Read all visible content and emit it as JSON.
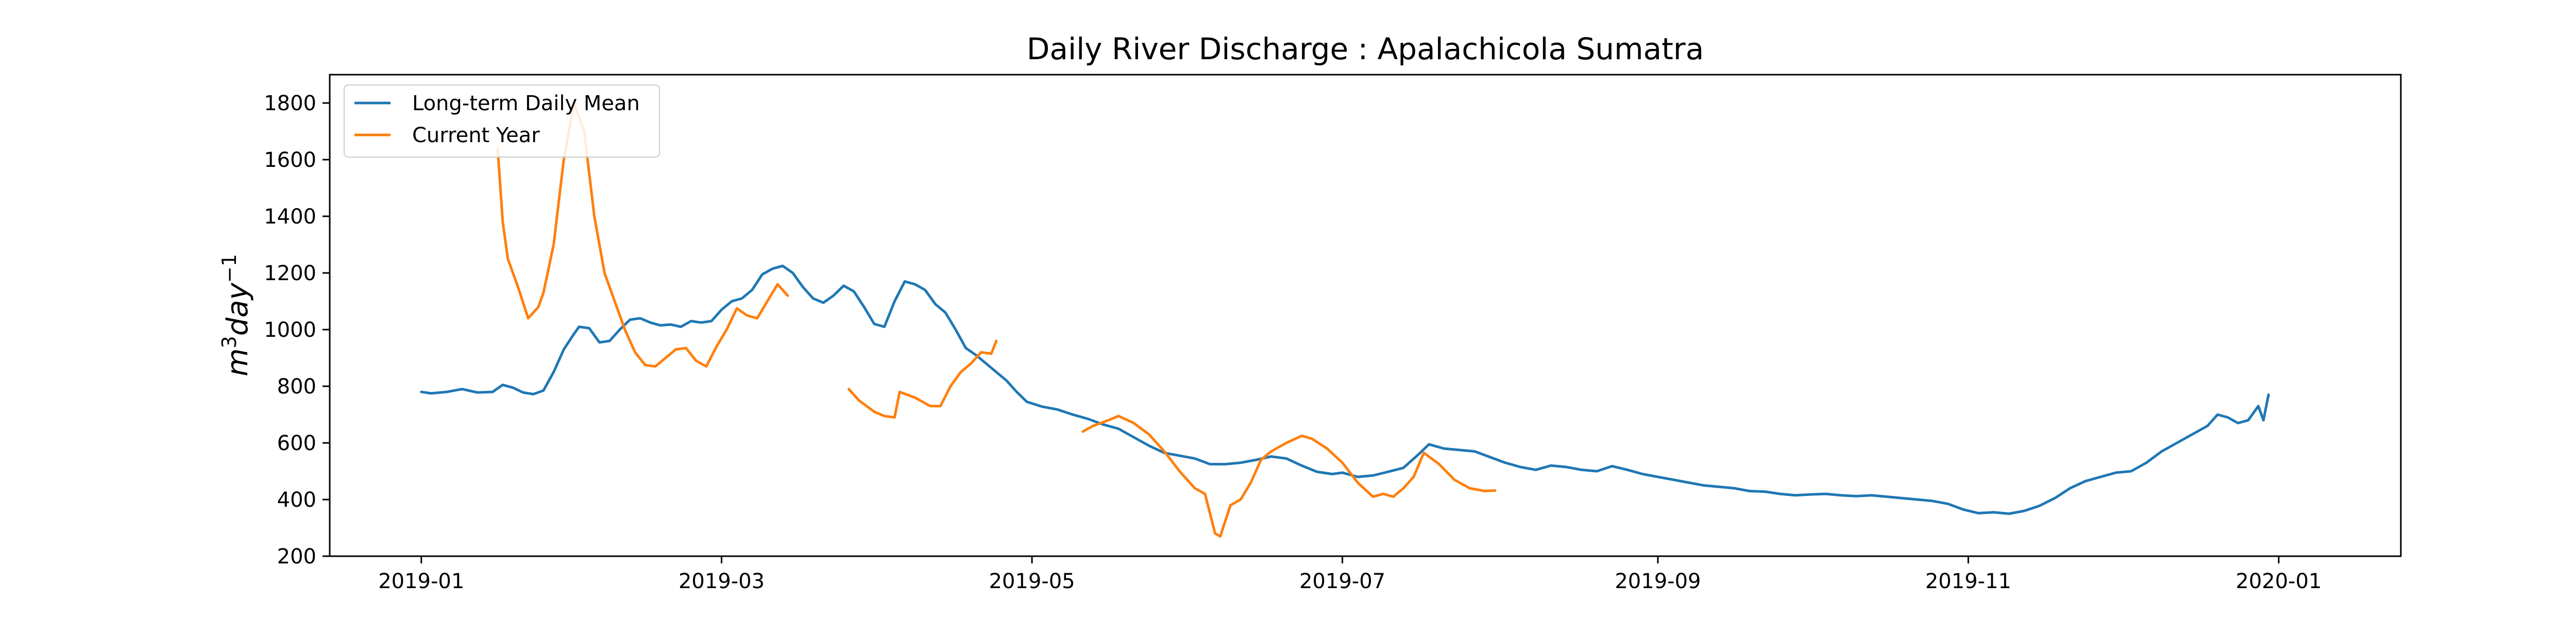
{
  "chart_data": {
    "type": "line",
    "title": "Daily River Discharge : Apalachicola Sumatra",
    "ylabel": "m^3 day^-1",
    "ylim": [
      200,
      1900
    ],
    "xlim": [
      "2018-12-14",
      "2020-01-25"
    ],
    "yticks": [
      200,
      400,
      600,
      800,
      1000,
      1200,
      1400,
      1600,
      1800
    ],
    "xticks": [
      "2019-01",
      "2019-03",
      "2019-05",
      "2019-07",
      "2019-09",
      "2019-11",
      "2020-01"
    ],
    "legend_position": "top-left",
    "grid": false,
    "series": [
      {
        "name": "Long-term Daily Mean",
        "color": "#1f77b4",
        "segments": [
          [
            [
              "2019-01-01",
              780
            ],
            [
              "2019-01-03",
              775
            ],
            [
              "2019-01-06",
              780
            ],
            [
              "2019-01-09",
              790
            ],
            [
              "2019-01-12",
              778
            ],
            [
              "2019-01-15",
              780
            ],
            [
              "2019-01-17",
              805
            ],
            [
              "2019-01-19",
              795
            ],
            [
              "2019-01-21",
              778
            ],
            [
              "2019-01-23",
              772
            ],
            [
              "2019-01-25",
              785
            ],
            [
              "2019-01-27",
              850
            ],
            [
              "2019-01-29",
              930
            ],
            [
              "2019-01-31",
              985
            ],
            [
              "2019-02-01",
              1010
            ],
            [
              "2019-02-03",
              1005
            ],
            [
              "2019-02-05",
              955
            ],
            [
              "2019-02-07",
              960
            ],
            [
              "2019-02-09",
              1000
            ],
            [
              "2019-02-11",
              1035
            ],
            [
              "2019-02-13",
              1040
            ],
            [
              "2019-02-15",
              1025
            ],
            [
              "2019-02-17",
              1015
            ],
            [
              "2019-02-19",
              1018
            ],
            [
              "2019-02-21",
              1010
            ],
            [
              "2019-02-23",
              1030
            ],
            [
              "2019-02-25",
              1025
            ],
            [
              "2019-02-27",
              1030
            ],
            [
              "2019-03-01",
              1070
            ],
            [
              "2019-03-03",
              1100
            ],
            [
              "2019-03-05",
              1110
            ],
            [
              "2019-03-07",
              1140
            ],
            [
              "2019-03-09",
              1195
            ],
            [
              "2019-03-11",
              1215
            ],
            [
              "2019-03-13",
              1225
            ],
            [
              "2019-03-15",
              1200
            ],
            [
              "2019-03-17",
              1150
            ],
            [
              "2019-03-19",
              1110
            ],
            [
              "2019-03-21",
              1095
            ],
            [
              "2019-03-23",
              1120
            ],
            [
              "2019-03-25",
              1155
            ],
            [
              "2019-03-27",
              1135
            ],
            [
              "2019-03-29",
              1080
            ],
            [
              "2019-03-31",
              1020
            ],
            [
              "2019-04-02",
              1010
            ],
            [
              "2019-04-04",
              1100
            ],
            [
              "2019-04-06",
              1170
            ],
            [
              "2019-04-08",
              1160
            ],
            [
              "2019-04-10",
              1140
            ],
            [
              "2019-04-12",
              1090
            ],
            [
              "2019-04-14",
              1060
            ],
            [
              "2019-04-16",
              1000
            ],
            [
              "2019-04-18",
              935
            ],
            [
              "2019-04-20",
              910
            ],
            [
              "2019-04-22",
              880
            ],
            [
              "2019-04-24",
              850
            ],
            [
              "2019-04-26",
              820
            ],
            [
              "2019-04-28",
              780
            ],
            [
              "2019-04-30",
              745
            ],
            [
              "2019-05-03",
              728
            ],
            [
              "2019-05-06",
              718
            ],
            [
              "2019-05-09",
              700
            ],
            [
              "2019-05-12",
              685
            ],
            [
              "2019-05-15",
              665
            ],
            [
              "2019-05-18",
              650
            ],
            [
              "2019-05-21",
              620
            ],
            [
              "2019-05-24",
              590
            ],
            [
              "2019-05-27",
              565
            ],
            [
              "2019-05-30",
              555
            ],
            [
              "2019-06-02",
              545
            ],
            [
              "2019-06-05",
              525
            ],
            [
              "2019-06-08",
              525
            ],
            [
              "2019-06-11",
              530
            ],
            [
              "2019-06-14",
              540
            ],
            [
              "2019-06-17",
              552
            ],
            [
              "2019-06-20",
              545
            ],
            [
              "2019-06-23",
              520
            ],
            [
              "2019-06-26",
              498
            ],
            [
              "2019-06-29",
              490
            ],
            [
              "2019-07-01",
              495
            ],
            [
              "2019-07-04",
              480
            ],
            [
              "2019-07-07",
              485
            ],
            [
              "2019-07-10",
              498
            ],
            [
              "2019-07-13",
              512
            ],
            [
              "2019-07-16",
              560
            ],
            [
              "2019-07-18",
              595
            ],
            [
              "2019-07-21",
              580
            ],
            [
              "2019-07-24",
              575
            ],
            [
              "2019-07-27",
              570
            ],
            [
              "2019-07-30",
              550
            ],
            [
              "2019-08-02",
              530
            ],
            [
              "2019-08-05",
              515
            ],
            [
              "2019-08-08",
              505
            ],
            [
              "2019-08-11",
              520
            ],
            [
              "2019-08-14",
              515
            ],
            [
              "2019-08-17",
              505
            ],
            [
              "2019-08-20",
              500
            ],
            [
              "2019-08-23",
              518
            ],
            [
              "2019-08-26",
              505
            ],
            [
              "2019-08-29",
              490
            ],
            [
              "2019-09-01",
              480
            ],
            [
              "2019-09-04",
              470
            ],
            [
              "2019-09-07",
              460
            ],
            [
              "2019-09-10",
              450
            ],
            [
              "2019-09-13",
              445
            ],
            [
              "2019-09-16",
              440
            ],
            [
              "2019-09-19",
              430
            ],
            [
              "2019-09-22",
              428
            ],
            [
              "2019-09-25",
              420
            ],
            [
              "2019-09-28",
              415
            ],
            [
              "2019-10-01",
              418
            ],
            [
              "2019-10-04",
              420
            ],
            [
              "2019-10-07",
              415
            ],
            [
              "2019-10-10",
              412
            ],
            [
              "2019-10-13",
              415
            ],
            [
              "2019-10-16",
              410
            ],
            [
              "2019-10-19",
              405
            ],
            [
              "2019-10-22",
              400
            ],
            [
              "2019-10-25",
              395
            ],
            [
              "2019-10-28",
              385
            ],
            [
              "2019-10-31",
              365
            ],
            [
              "2019-11-03",
              352
            ],
            [
              "2019-11-06",
              355
            ],
            [
              "2019-11-09",
              350
            ],
            [
              "2019-11-12",
              360
            ],
            [
              "2019-11-15",
              378
            ],
            [
              "2019-11-18",
              405
            ],
            [
              "2019-11-21",
              440
            ],
            [
              "2019-11-24",
              465
            ],
            [
              "2019-11-27",
              480
            ],
            [
              "2019-11-30",
              495
            ],
            [
              "2019-12-03",
              500
            ],
            [
              "2019-12-06",
              530
            ],
            [
              "2019-12-09",
              570
            ],
            [
              "2019-12-12",
              600
            ],
            [
              "2019-12-15",
              630
            ],
            [
              "2019-12-18",
              660
            ],
            [
              "2019-12-20",
              700
            ],
            [
              "2019-12-22",
              690
            ],
            [
              "2019-12-24",
              670
            ],
            [
              "2019-12-26",
              680
            ],
            [
              "2019-12-28",
              730
            ],
            [
              "2019-12-29",
              680
            ],
            [
              "2019-12-30",
              770
            ]
          ]
        ]
      },
      {
        "name": "Current Year",
        "color": "#ff7f0e",
        "segments": [
          [
            [
              "2019-01-16",
              1640
            ],
            [
              "2019-01-17",
              1380
            ],
            [
              "2019-01-18",
              1250
            ],
            [
              "2019-01-20",
              1150
            ],
            [
              "2019-01-22",
              1040
            ],
            [
              "2019-01-24",
              1080
            ],
            [
              "2019-01-25",
              1130
            ],
            [
              "2019-01-27",
              1300
            ],
            [
              "2019-01-29",
              1600
            ],
            [
              "2019-01-31",
              1800
            ],
            [
              "2019-02-02",
              1700
            ],
            [
              "2019-02-04",
              1400
            ],
            [
              "2019-02-06",
              1200
            ],
            [
              "2019-02-08",
              1100
            ],
            [
              "2019-02-10",
              1000
            ],
            [
              "2019-02-12",
              920
            ],
            [
              "2019-02-14",
              875
            ],
            [
              "2019-02-16",
              870
            ],
            [
              "2019-02-18",
              900
            ],
            [
              "2019-02-20",
              930
            ],
            [
              "2019-02-22",
              935
            ],
            [
              "2019-02-24",
              890
            ],
            [
              "2019-02-26",
              870
            ],
            [
              "2019-02-28",
              940
            ],
            [
              "2019-03-02",
              1000
            ],
            [
              "2019-03-04",
              1075
            ],
            [
              "2019-03-06",
              1050
            ],
            [
              "2019-03-08",
              1040
            ],
            [
              "2019-03-10",
              1100
            ],
            [
              "2019-03-12",
              1160
            ],
            [
              "2019-03-14",
              1120
            ]
          ],
          [
            [
              "2019-03-26",
              790
            ],
            [
              "2019-03-28",
              750
            ],
            [
              "2019-03-31",
              710
            ],
            [
              "2019-04-02",
              695
            ],
            [
              "2019-04-04",
              690
            ],
            [
              "2019-04-05",
              780
            ],
            [
              "2019-04-08",
              760
            ],
            [
              "2019-04-11",
              730
            ],
            [
              "2019-04-13",
              730
            ],
            [
              "2019-04-15",
              800
            ],
            [
              "2019-04-17",
              850
            ],
            [
              "2019-04-19",
              880
            ],
            [
              "2019-04-21",
              920
            ],
            [
              "2019-04-23",
              915
            ],
            [
              "2019-04-24",
              960
            ]
          ],
          [
            [
              "2019-05-11",
              640
            ],
            [
              "2019-05-13",
              660
            ],
            [
              "2019-05-16",
              680
            ],
            [
              "2019-05-18",
              695
            ],
            [
              "2019-05-21",
              670
            ],
            [
              "2019-05-24",
              630
            ],
            [
              "2019-05-27",
              570
            ],
            [
              "2019-05-30",
              500
            ],
            [
              "2019-06-02",
              440
            ],
            [
              "2019-06-04",
              420
            ],
            [
              "2019-06-06",
              280
            ],
            [
              "2019-06-07",
              270
            ],
            [
              "2019-06-09",
              380
            ],
            [
              "2019-06-11",
              400
            ],
            [
              "2019-06-13",
              460
            ],
            [
              "2019-06-15",
              540
            ],
            [
              "2019-06-17",
              570
            ],
            [
              "2019-06-20",
              600
            ],
            [
              "2019-06-23",
              625
            ],
            [
              "2019-06-25",
              615
            ],
            [
              "2019-06-28",
              580
            ],
            [
              "2019-07-01",
              530
            ],
            [
              "2019-07-04",
              460
            ],
            [
              "2019-07-07",
              410
            ],
            [
              "2019-07-09",
              420
            ],
            [
              "2019-07-11",
              410
            ],
            [
              "2019-07-13",
              440
            ],
            [
              "2019-07-15",
              480
            ],
            [
              "2019-07-17",
              565
            ],
            [
              "2019-07-20",
              525
            ],
            [
              "2019-07-23",
              470
            ],
            [
              "2019-07-26",
              440
            ],
            [
              "2019-07-29",
              430
            ],
            [
              "2019-07-31",
              432
            ]
          ]
        ]
      }
    ]
  }
}
